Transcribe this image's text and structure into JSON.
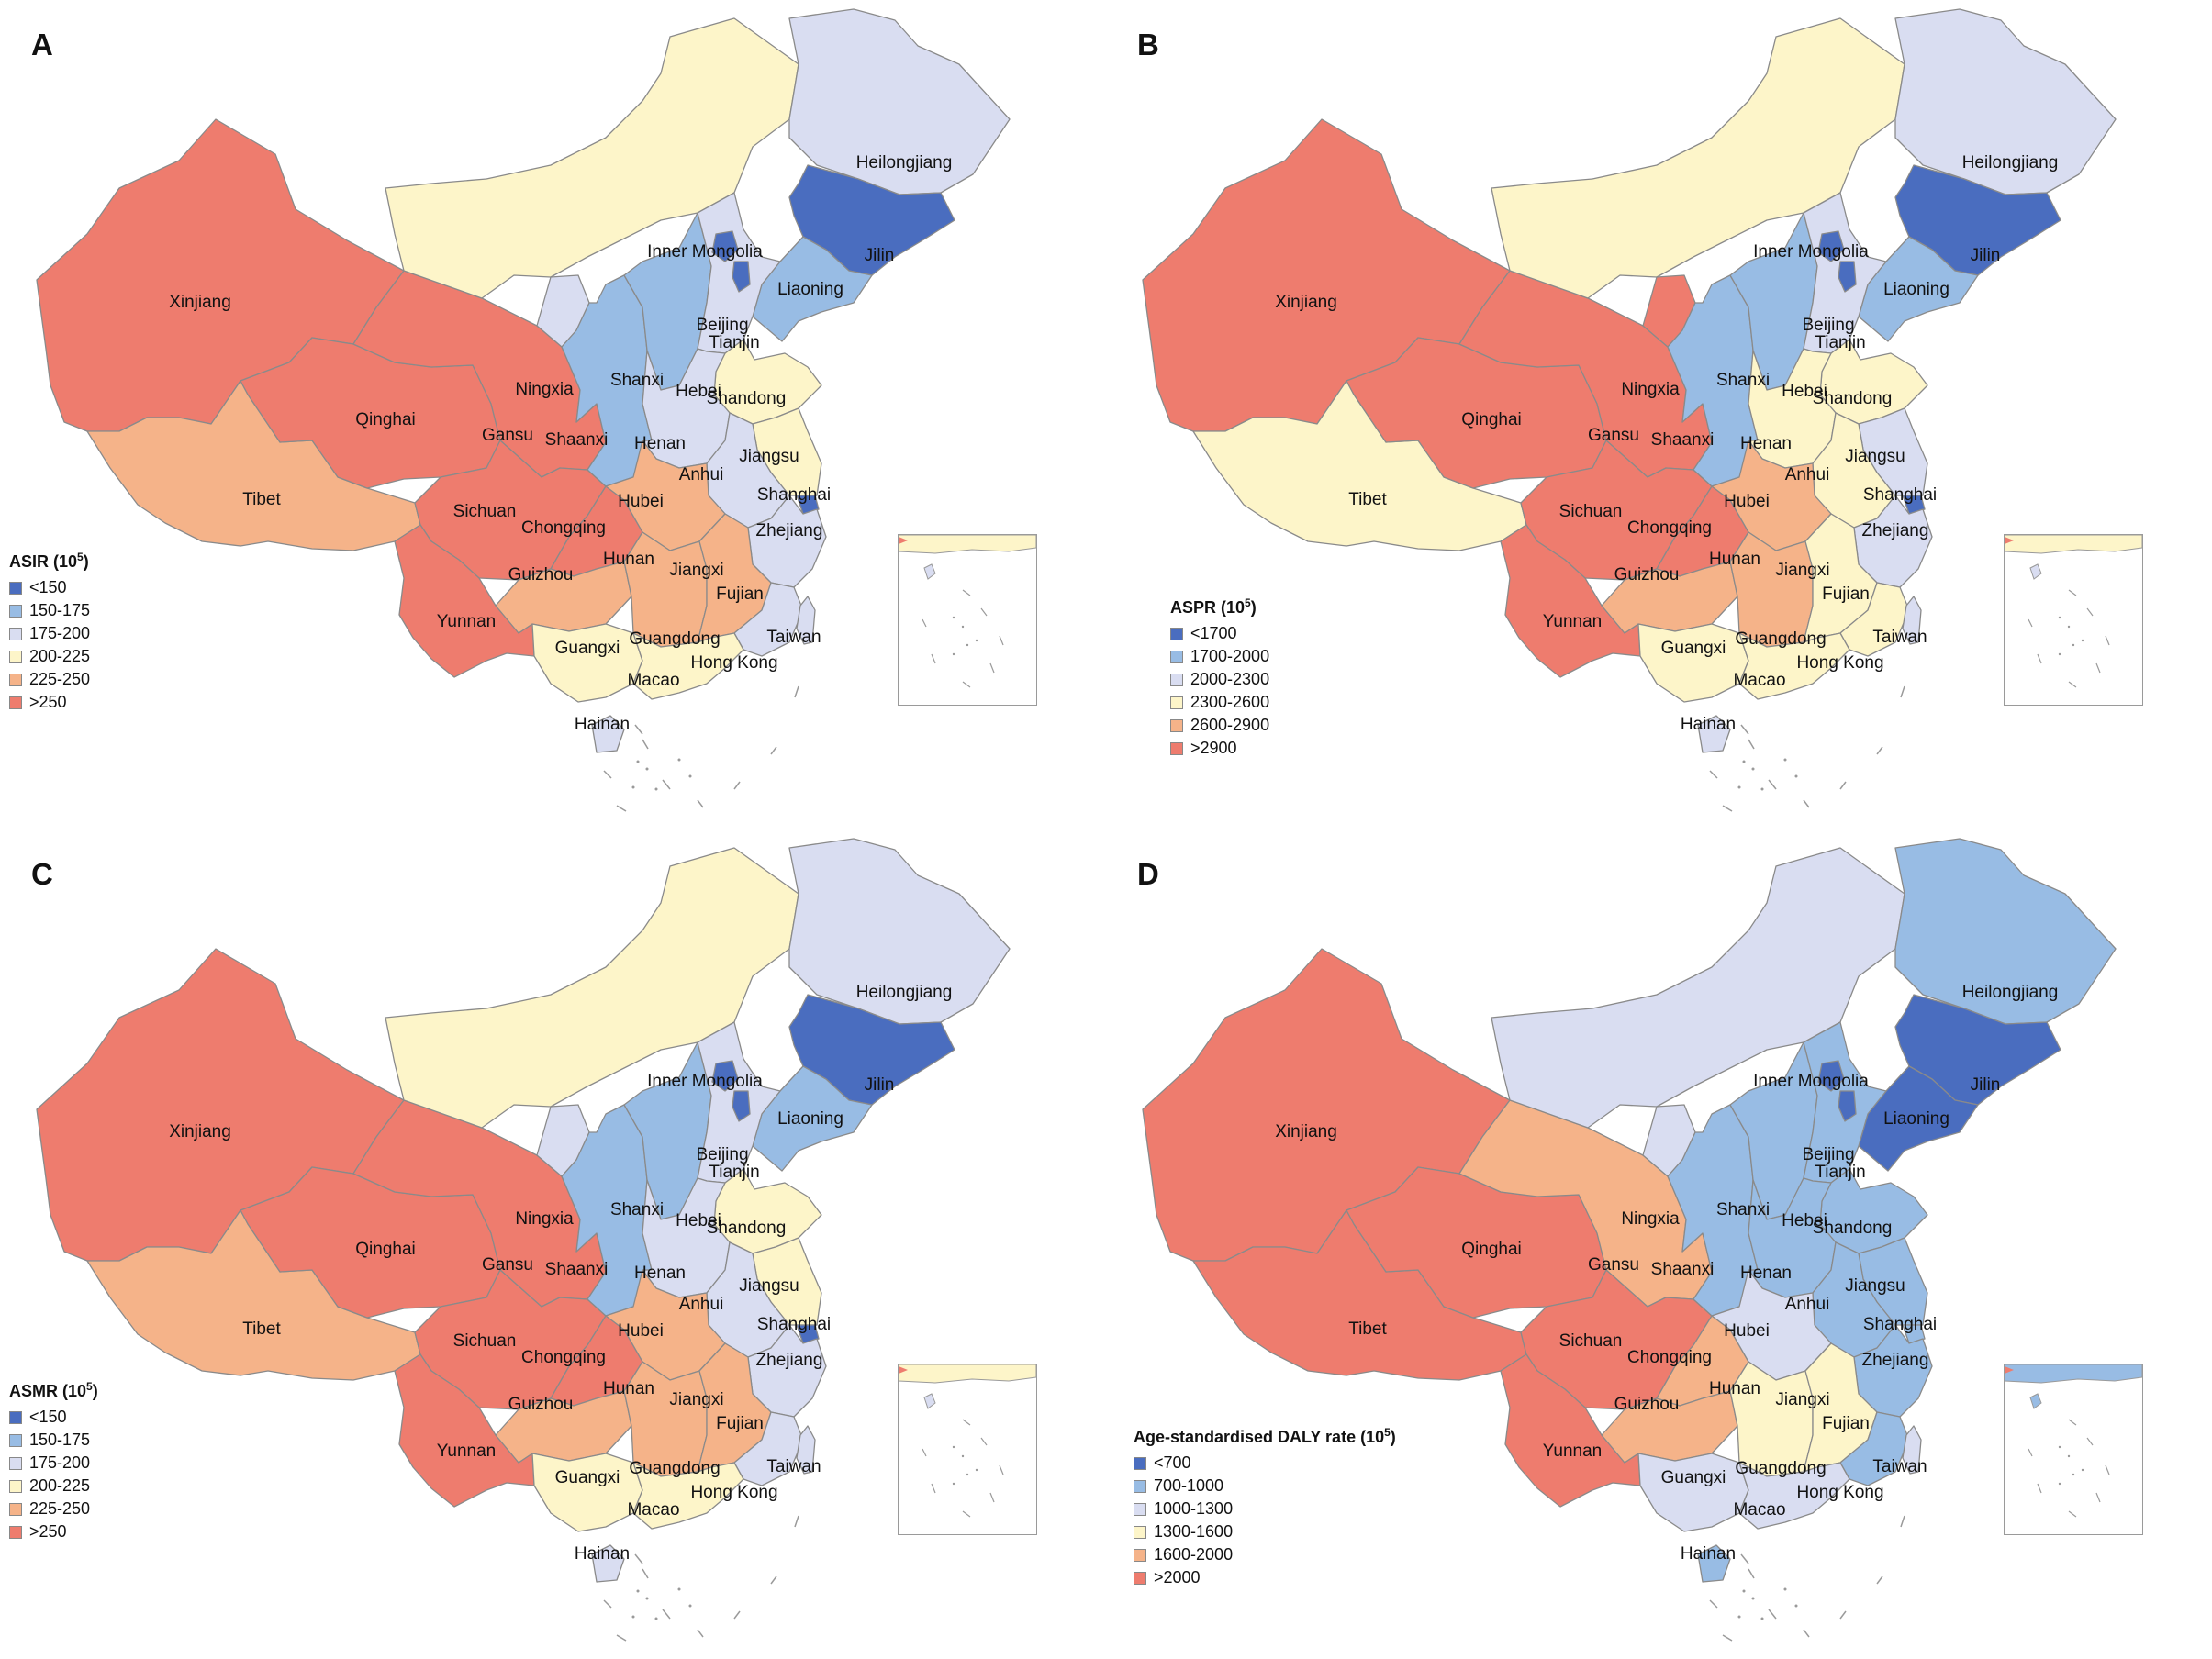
{
  "palette": {
    "c1": "#4A6DBF",
    "c2": "#98BCE4",
    "c3": "#D9DDF1",
    "c4": "#FDF5C9",
    "c5": "#F5B389",
    "c6": "#EE7C6E"
  },
  "panels": [
    {
      "id": "A",
      "letter": "A",
      "legend": {
        "title": "ASIR (10",
        "title_sup": "5",
        "title_end": ")",
        "items": [
          "<150",
          "150-175",
          "175-200",
          "200-225",
          "225-250",
          ">250"
        ]
      },
      "colors": {
        "Xinjiang": 6,
        "Tibet": 5,
        "Qinghai": 6,
        "Gansu": 6,
        "Sichuan": 6,
        "Yunnan": 6,
        "Inner Mongolia": 4,
        "Heilongjiang": 3,
        "Jilin": 1,
        "Liaoning": 2,
        "Ningxia": 3,
        "Shaanxi": 2,
        "Shanxi": 2,
        "Hebei": 3,
        "Beijing": 1,
        "Tianjin": 1,
        "Shandong": 4,
        "Henan": 3,
        "Hubei": 5,
        "Anhui": 3,
        "Jiangsu": 4,
        "Shanghai": 1,
        "Zhejiang": 3,
        "Chongqing": 6,
        "Guizhou": 5,
        "Hunan": 5,
        "Jiangxi": 5,
        "Fujian": 3,
        "Guangxi": 4,
        "Guangdong": 4,
        "Hainan": 3,
        "Taiwan": 3,
        "SouthSea": 4
      }
    },
    {
      "id": "B",
      "letter": "B",
      "legend": {
        "title": "ASPR (10",
        "title_sup": "5",
        "title_end": ")",
        "items": [
          "<1700",
          "1700-2000",
          "2000-2300",
          "2300-2600",
          "2600-2900",
          ">2900"
        ]
      },
      "colors": {
        "Xinjiang": 6,
        "Tibet": 4,
        "Qinghai": 6,
        "Gansu": 6,
        "Sichuan": 6,
        "Yunnan": 6,
        "Inner Mongolia": 4,
        "Heilongjiang": 3,
        "Jilin": 1,
        "Liaoning": 2,
        "Ningxia": 6,
        "Shaanxi": 2,
        "Shanxi": 2,
        "Hebei": 3,
        "Beijing": 1,
        "Tianjin": 1,
        "Shandong": 4,
        "Henan": 4,
        "Hubei": 5,
        "Anhui": 4,
        "Jiangsu": 3,
        "Shanghai": 1,
        "Zhejiang": 3,
        "Chongqing": 6,
        "Guizhou": 5,
        "Hunan": 5,
        "Jiangxi": 4,
        "Fujian": 4,
        "Guangxi": 4,
        "Guangdong": 4,
        "Hainan": 3,
        "Taiwan": 3,
        "SouthSea": 4
      }
    },
    {
      "id": "C",
      "letter": "C",
      "legend": {
        "title": "ASMR (10",
        "title_sup": "5",
        "title_end": ")",
        "items": [
          "<150",
          "150-175",
          "175-200",
          "200-225",
          "225-250",
          ">250"
        ]
      },
      "colors": {
        "Xinjiang": 6,
        "Tibet": 5,
        "Qinghai": 6,
        "Gansu": 6,
        "Sichuan": 6,
        "Yunnan": 6,
        "Inner Mongolia": 4,
        "Heilongjiang": 3,
        "Jilin": 1,
        "Liaoning": 2,
        "Ningxia": 3,
        "Shaanxi": 2,
        "Shanxi": 2,
        "Hebei": 3,
        "Beijing": 1,
        "Tianjin": 1,
        "Shandong": 4,
        "Henan": 3,
        "Hubei": 5,
        "Anhui": 3,
        "Jiangsu": 4,
        "Shanghai": 1,
        "Zhejiang": 3,
        "Chongqing": 6,
        "Guizhou": 5,
        "Hunan": 5,
        "Jiangxi": 5,
        "Fujian": 3,
        "Guangxi": 4,
        "Guangdong": 4,
        "Hainan": 3,
        "Taiwan": 3,
        "SouthSea": 4
      }
    },
    {
      "id": "D",
      "letter": "D",
      "legend": {
        "title": "Age-standardised DALY rate (10",
        "title_sup": "5",
        "title_end": ")",
        "items": [
          "<700",
          "700-1000",
          "1000-1300",
          "1300-1600",
          "1600-2000",
          ">2000"
        ]
      },
      "colors": {
        "Xinjiang": 6,
        "Tibet": 6,
        "Qinghai": 6,
        "Gansu": 5,
        "Sichuan": 6,
        "Yunnan": 6,
        "Inner Mongolia": 3,
        "Heilongjiang": 2,
        "Jilin": 1,
        "Liaoning": 1,
        "Ningxia": 3,
        "Shaanxi": 2,
        "Shanxi": 2,
        "Hebei": 2,
        "Beijing": 1,
        "Tianjin": 1,
        "Shandong": 2,
        "Henan": 2,
        "Hubei": 3,
        "Anhui": 2,
        "Jiangsu": 2,
        "Shanghai": 2,
        "Zhejiang": 2,
        "Chongqing": 5,
        "Guizhou": 5,
        "Hunan": 4,
        "Jiangxi": 4,
        "Fujian": 2,
        "Guangxi": 3,
        "Guangdong": 3,
        "Hainan": 2,
        "Taiwan": 3,
        "SouthSea": 2
      }
    }
  ],
  "labels": [
    "Xinjiang",
    "Tibet",
    "Qinghai",
    "Gansu",
    "Sichuan",
    "Yunnan",
    "Inner Mongolia",
    "Heilongjiang",
    "Jilin",
    "Liaoning",
    "Ningxia",
    "Shaanxi",
    "Shanxi",
    "Hebei",
    "Beijing",
    "Tianjin",
    "Shandong",
    "Henan",
    "Hubei",
    "Anhui",
    "Jiangsu",
    "Shanghai",
    "Zhejiang",
    "Chongqing",
    "Guizhou",
    "Hunan",
    "Jiangxi",
    "Fujian",
    "Guangxi",
    "Guangdong",
    "Hainan",
    "Taiwan",
    "Hong Kong",
    "Macao"
  ]
}
